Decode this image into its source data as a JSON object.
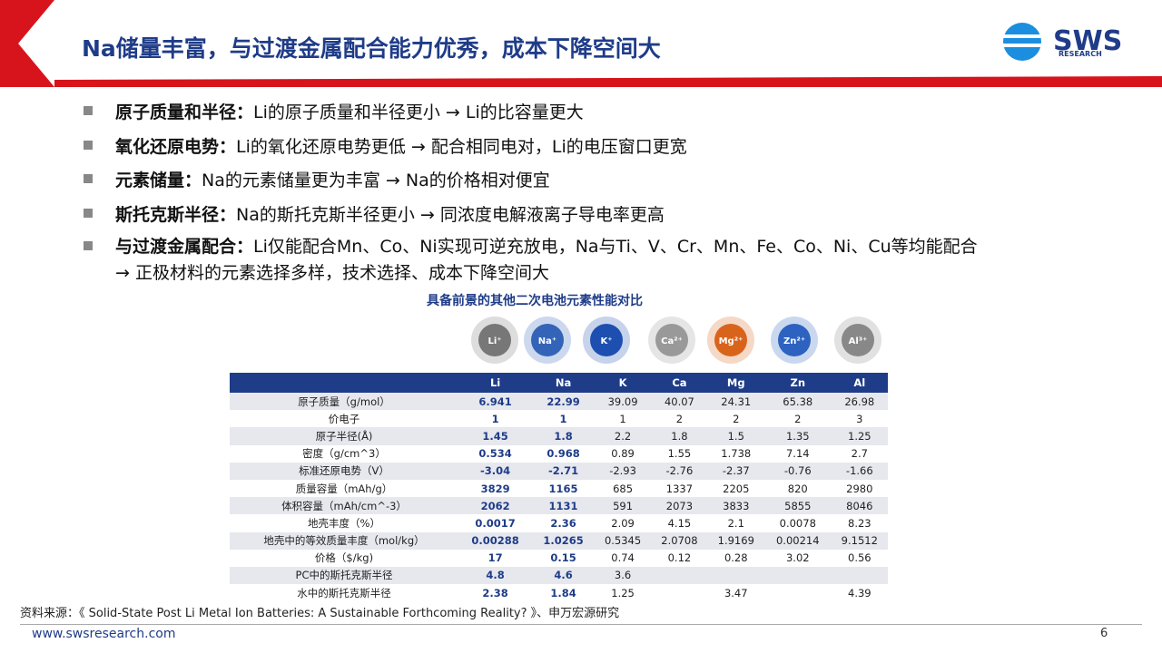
{
  "header": {
    "title": "Na储量丰富，与过渡金属配合能力优秀，成本下降空间大",
    "logo": "SWS",
    "logo_sub": "RESEARCH"
  },
  "bullets": [
    {
      "label": "原子质量和半径：",
      "text": "Li的原子质量和半径更小 → Li的比容量更大"
    },
    {
      "label": "氧化还原电势：",
      "text": "Li的氧化还原电势更低 → 配合相同电对，Li的电压窗口更宽"
    },
    {
      "label": "元素储量：",
      "text": "Na的元素储量更为丰富 → Na的价格相对便宜"
    },
    {
      "label": "斯托克斯半径：",
      "text": "Na的斯托克斯半径更小 → 同浓度电解液离子导电率更高"
    },
    {
      "label": "与过渡金属配合：",
      "text": "Li仅能配合Mn、Co、Ni实现可逆充放电，Na与Ti、V、Cr、Mn、Fe、Co、Ni、Cu等均能配合",
      "text2": "→ 正极材料的元素选择多样，技术选择、成本下降空间大"
    }
  ],
  "table": {
    "caption": "具备前景的其他二次电池元素性能对比",
    "ions": [
      "Li⁺",
      "Na⁺",
      "K⁺",
      "Ca²⁺",
      "Mg²⁺",
      "Zn²⁺",
      "Al³⁺"
    ],
    "columns": [
      "Li",
      "Na",
      "K",
      "Ca",
      "Mg",
      "Zn",
      "Al"
    ],
    "rows": [
      [
        "原子质量（g/mol）",
        "6.941",
        "22.99",
        "39.09",
        "40.07",
        "24.31",
        "65.38",
        "26.98"
      ],
      [
        "价电子",
        "1",
        "1",
        "1",
        "2",
        "2",
        "2",
        "3"
      ],
      [
        "原子半径(Å)",
        "1.45",
        "1.8",
        "2.2",
        "1.8",
        "1.5",
        "1.35",
        "1.25"
      ],
      [
        "密度（g/cm^3）",
        "0.534",
        "0.968",
        "0.89",
        "1.55",
        "1.738",
        "7.14",
        "2.7"
      ],
      [
        "标准还原电势（V）",
        "-3.04",
        "-2.71",
        "-2.93",
        "-2.76",
        "-2.37",
        "-0.76",
        "-1.66"
      ],
      [
        "质量容量（mAh/g）",
        "3829",
        "1165",
        "685",
        "1337",
        "2205",
        "820",
        "2980"
      ],
      [
        "体积容量（mAh/cm^-3）",
        "2062",
        "1131",
        "591",
        "2073",
        "3833",
        "5855",
        "8046"
      ],
      [
        "地壳丰度（%）",
        "0.0017",
        "2.36",
        "2.09",
        "4.15",
        "2.1",
        "0.0078",
        "8.23"
      ],
      [
        "地壳中的等效质量丰度（mol/kg）",
        "0.00288",
        "1.0265",
        "0.5345",
        "2.0708",
        "1.9169",
        "0.00214",
        "9.1512"
      ],
      [
        "价格（$/kg)",
        "17",
        "0.15",
        "0.74",
        "0.12",
        "0.28",
        "3.02",
        "0.56"
      ],
      [
        "PC中的斯托克斯半径",
        "4.8",
        "4.6",
        "3.6",
        null,
        null,
        null,
        null
      ],
      [
        "水中的斯托克斯半径",
        "2.38",
        "1.84",
        "1.25",
        null,
        "3.47",
        null,
        "4.39"
      ]
    ]
  },
  "source": "资料来源：《 Solid-State Post Li Metal Ion Batteries: A Sustainable Forthcoming Reality? 》、申万宏源研究",
  "footer": {
    "url": "www.swsresearch.com",
    "page": "6"
  }
}
